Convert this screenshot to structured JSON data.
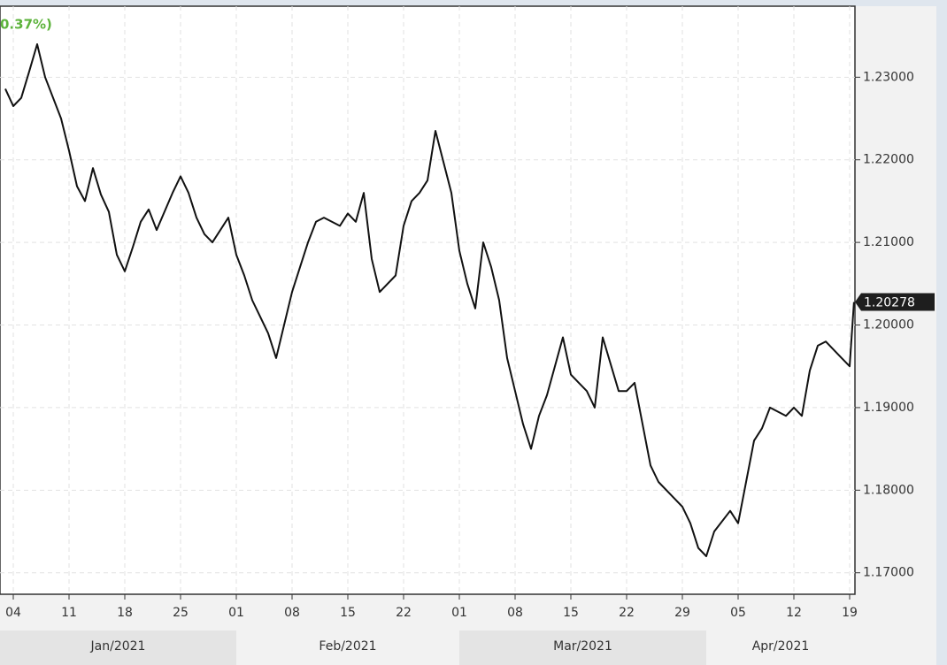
{
  "chart_data": {
    "type": "line",
    "header_text": "0.37%)",
    "x": [
      "2021-01-03",
      "2021-01-04",
      "2021-01-05",
      "2021-01-06",
      "2021-01-07",
      "2021-01-08",
      "2021-01-10",
      "2021-01-11",
      "2021-01-12",
      "2021-01-13",
      "2021-01-14",
      "2021-01-15",
      "2021-01-16",
      "2021-01-17",
      "2021-01-18",
      "2021-01-19",
      "2021-01-20",
      "2021-01-21",
      "2021-01-22",
      "2021-01-24",
      "2021-01-25",
      "2021-01-26",
      "2021-01-27",
      "2021-01-28",
      "2021-01-29",
      "2021-01-31",
      "2021-02-01",
      "2021-02-02",
      "2021-02-03",
      "2021-02-04",
      "2021-02-05",
      "2021-02-06",
      "2021-02-07",
      "2021-02-08",
      "2021-02-09",
      "2021-02-10",
      "2021-02-11",
      "2021-02-12",
      "2021-02-14",
      "2021-02-15",
      "2021-02-16",
      "2021-02-17",
      "2021-02-18",
      "2021-02-19",
      "2021-02-21",
      "2021-02-22",
      "2021-02-23",
      "2021-02-24",
      "2021-02-25",
      "2021-02-26",
      "2021-02-28",
      "2021-03-01",
      "2021-03-02",
      "2021-03-03",
      "2021-03-04",
      "2021-03-05",
      "2021-03-06",
      "2021-03-07",
      "2021-03-08",
      "2021-03-09",
      "2021-03-10",
      "2021-03-11",
      "2021-03-12",
      "2021-03-14",
      "2021-03-15",
      "2021-03-16",
      "2021-03-17",
      "2021-03-18",
      "2021-03-19",
      "2021-03-21",
      "2021-03-22",
      "2021-03-23",
      "2021-03-24",
      "2021-03-25",
      "2021-03-26",
      "2021-03-28",
      "2021-03-29",
      "2021-03-30",
      "2021-03-31",
      "2021-04-01",
      "2021-04-02",
      "2021-04-04",
      "2021-04-05",
      "2021-04-06",
      "2021-04-07",
      "2021-04-08",
      "2021-04-09",
      "2021-04-11",
      "2021-04-12",
      "2021-04-13",
      "2021-04-14",
      "2021-04-15",
      "2021-04-16",
      "2021-04-18",
      "2021-04-19",
      "2021-04-19T13:00"
    ],
    "series": [
      {
        "color": "#111111",
        "values": [
          1.2286,
          1.2265,
          1.2275,
          1.2307,
          1.234,
          1.23,
          1.225,
          1.2211,
          1.2168,
          1.215,
          1.219,
          1.2158,
          1.2137,
          1.2085,
          1.2065,
          1.2094,
          1.2125,
          1.214,
          1.2115,
          1.216,
          1.218,
          1.216,
          1.213,
          1.211,
          1.21,
          1.213,
          1.2085,
          1.206,
          1.203,
          1.201,
          1.199,
          1.196,
          1.2,
          1.204,
          1.207,
          1.21,
          1.2125,
          1.213,
          1.212,
          1.2135,
          1.2125,
          1.216,
          1.208,
          1.204,
          1.206,
          1.212,
          1.215,
          1.216,
          1.2175,
          1.2235,
          1.216,
          1.209,
          1.205,
          1.202,
          1.21,
          1.207,
          1.203,
          1.196,
          1.192,
          1.188,
          1.185,
          1.189,
          1.1915,
          1.1985,
          1.194,
          1.193,
          1.192,
          1.19,
          1.1985,
          1.192,
          1.192,
          1.193,
          1.188,
          1.183,
          1.181,
          1.179,
          1.178,
          1.176,
          1.173,
          1.172,
          1.175,
          1.1775,
          1.176,
          1.181,
          1.186,
          1.1875,
          1.19,
          1.189,
          1.19,
          1.189,
          1.1945,
          1.1975,
          1.198,
          1.196,
          1.195,
          1.20278
        ]
      }
    ],
    "xlim": [
      "2021-01-02T08:00",
      "2021-04-19T16:00"
    ],
    "xticks": [
      {
        "value": "2021-01-04",
        "label": "04"
      },
      {
        "value": "2021-01-11",
        "label": "11"
      },
      {
        "value": "2021-01-18",
        "label": "18"
      },
      {
        "value": "2021-01-25",
        "label": "25"
      },
      {
        "value": "2021-02-01",
        "label": "01"
      },
      {
        "value": "2021-02-08",
        "label": "08"
      },
      {
        "value": "2021-02-15",
        "label": "15"
      },
      {
        "value": "2021-02-22",
        "label": "22"
      },
      {
        "value": "2021-03-01",
        "label": "01"
      },
      {
        "value": "2021-03-08",
        "label": "08"
      },
      {
        "value": "2021-03-15",
        "label": "15"
      },
      {
        "value": "2021-03-22",
        "label": "22"
      },
      {
        "value": "2021-03-29",
        "label": "29"
      },
      {
        "value": "2021-04-05",
        "label": "05"
      },
      {
        "value": "2021-04-12",
        "label": "12"
      },
      {
        "value": "2021-04-19",
        "label": "19"
      }
    ],
    "months": [
      {
        "value": "2021-01-01",
        "label": "Jan/2021"
      },
      {
        "value": "2021-02-01",
        "label": "Feb/2021"
      },
      {
        "value": "2021-03-01",
        "label": "Mar/2021"
      },
      {
        "value": "2021-04-01",
        "label": "Apr/2021"
      }
    ],
    "ylim": [
      1.1674,
      1.2386
    ],
    "yticks": [
      {
        "value": 1.17,
        "label": "1.17000"
      },
      {
        "value": 1.18,
        "label": "1.18000"
      },
      {
        "value": 1.19,
        "label": "1.19000"
      },
      {
        "value": 1.2,
        "label": "1.20000"
      },
      {
        "value": 1.21,
        "label": "1.21000"
      },
      {
        "value": 1.22,
        "label": "1.22000"
      },
      {
        "value": 1.23,
        "label": "1.23000"
      }
    ],
    "grid": true
  }
}
